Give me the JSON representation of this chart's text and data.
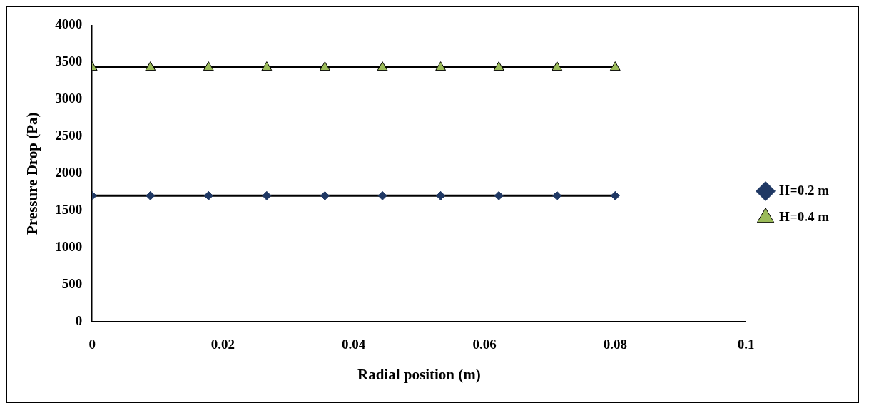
{
  "chart_data": {
    "type": "line",
    "xlabel": "Radial position (m)",
    "ylabel": "Pressure Drop (Pa)",
    "xlim": [
      0,
      0.1
    ],
    "xticks": [
      0,
      0.02,
      0.04,
      0.06,
      0.08,
      0.1
    ],
    "ylim": [
      0,
      4000
    ],
    "yticks": [
      0,
      500,
      1000,
      1500,
      2000,
      2500,
      3000,
      3500,
      4000
    ],
    "grid": false,
    "legend": "right",
    "line_style": "solid",
    "series": [
      {
        "name": "H=0.2 m",
        "color": "#1f3864",
        "marker": "diamond",
        "x": [
          0,
          0.0089,
          0.0178,
          0.0267,
          0.0356,
          0.0444,
          0.0533,
          0.0622,
          0.0711,
          0.08
        ],
        "values": [
          1700,
          1700,
          1700,
          1700,
          1700,
          1700,
          1700,
          1700,
          1700,
          1700
        ]
      },
      {
        "name": "H=0.4 m",
        "color": "#9bbb59",
        "marker": "triangle",
        "x": [
          0,
          0.0089,
          0.0178,
          0.0267,
          0.0356,
          0.0444,
          0.0533,
          0.0622,
          0.0711,
          0.08
        ],
        "values": [
          3430,
          3430,
          3430,
          3430,
          3430,
          3430,
          3430,
          3430,
          3430,
          3430
        ]
      }
    ]
  }
}
